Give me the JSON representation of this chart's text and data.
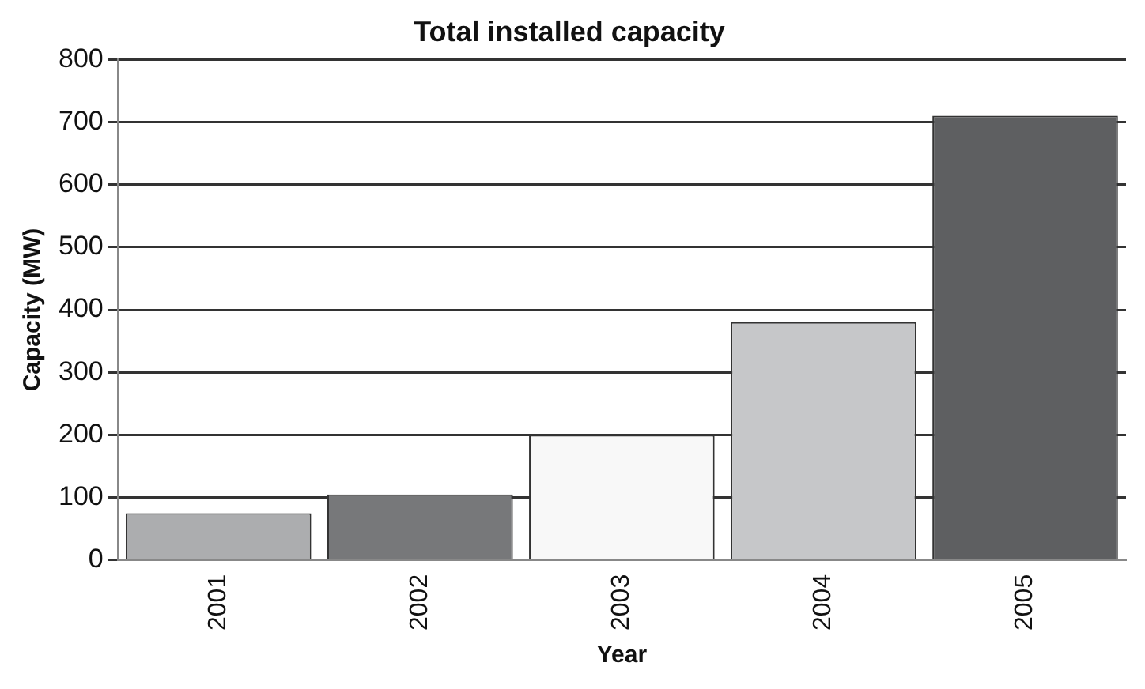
{
  "chart_data": {
    "type": "bar",
    "title": "Total installed capacity",
    "xlabel": "Year",
    "ylabel": "Capacity (MW)",
    "categories": [
      "2001",
      "2002",
      "2003",
      "2004",
      "2005"
    ],
    "values": [
      75,
      105,
      200,
      380,
      710
    ],
    "colors": [
      "#acadaf",
      "#77787a",
      "#f8f8f8",
      "#c6c7c9",
      "#5e5f61"
    ],
    "ylim": [
      0,
      800
    ],
    "yticks": [
      0,
      100,
      200,
      300,
      400,
      500,
      600,
      700,
      800
    ],
    "grid": "y",
    "legend": false
  }
}
